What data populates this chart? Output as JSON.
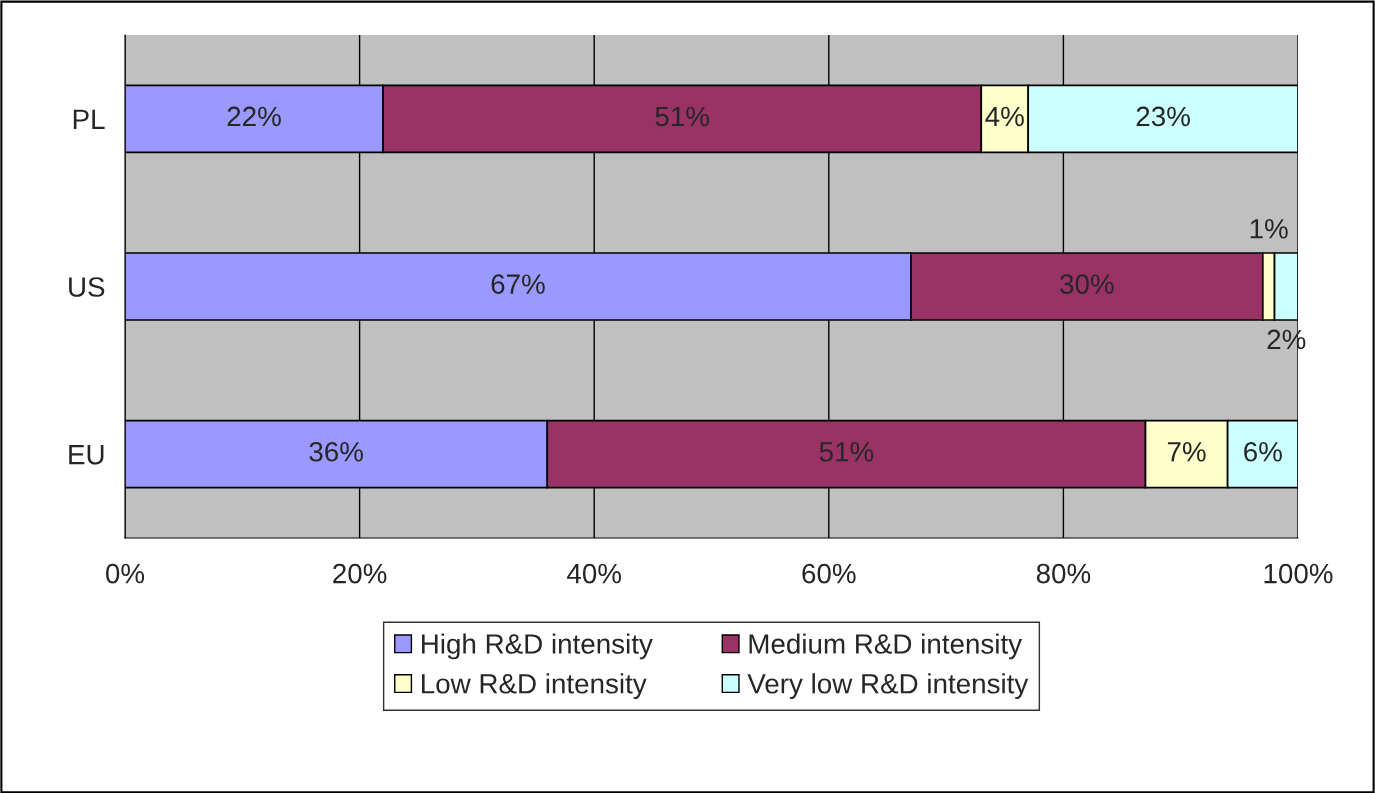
{
  "chart_data": {
    "type": "bar",
    "orientation": "horizontal",
    "stacked": true,
    "categories": [
      "PL",
      "US",
      "EU"
    ],
    "series": [
      {
        "name": "High R&D intensity",
        "color": "#9999ff",
        "values": [
          22,
          67,
          36
        ],
        "value_labels": [
          "22%",
          "67%",
          "36%"
        ]
      },
      {
        "name": "Medium R&D intensity",
        "color": "#993366",
        "values": [
          51,
          30,
          51
        ],
        "value_labels": [
          "51%",
          "30%",
          "51%"
        ]
      },
      {
        "name": "Low R&D intensity",
        "color": "#ffffcc",
        "values": [
          4,
          1,
          7
        ],
        "value_labels": [
          "4%",
          "1%",
          "7%"
        ]
      },
      {
        "name": "Very low R&D intensity",
        "color": "#ccffff",
        "values": [
          23,
          2,
          6
        ],
        "value_labels": [
          "23%",
          "2%",
          "6%"
        ]
      }
    ],
    "xlim": [
      0,
      100
    ],
    "xticks": [
      {
        "value": 0,
        "label": "0%"
      },
      {
        "value": 20,
        "label": "20%"
      },
      {
        "value": 40,
        "label": "40%"
      },
      {
        "value": 60,
        "label": "60%"
      },
      {
        "value": 80,
        "label": "80%"
      },
      {
        "value": 100,
        "label": "100%"
      }
    ],
    "grid": "x",
    "legend": "bottom"
  }
}
